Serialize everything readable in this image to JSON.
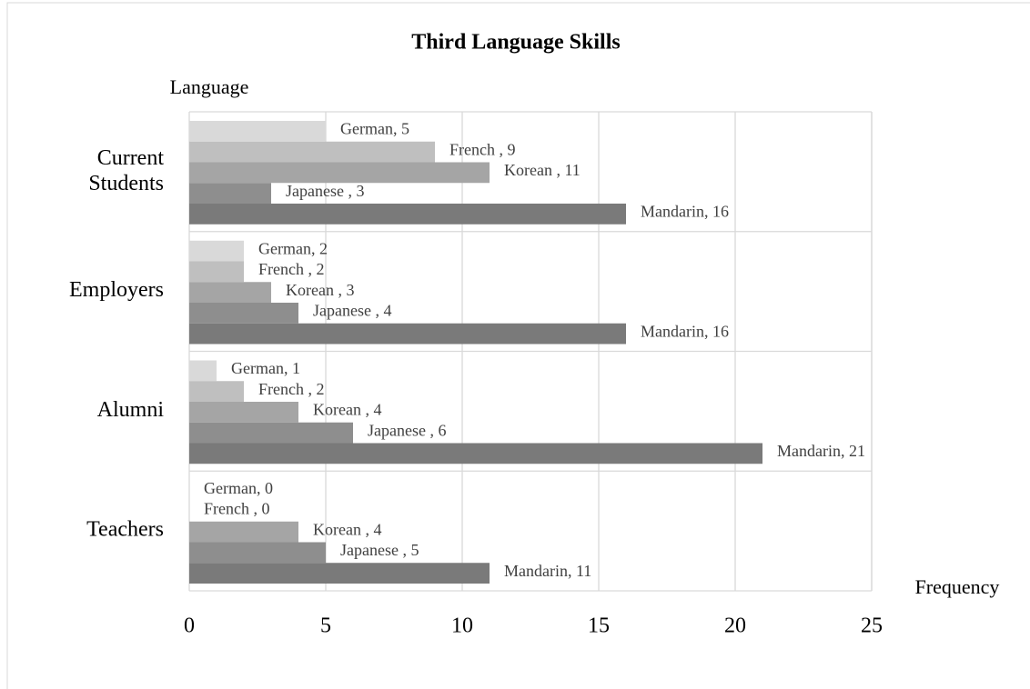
{
  "chart_data": {
    "type": "hbar",
    "title": "Third Language Skills",
    "ylabel": "Language",
    "xlabel": "Frequency",
    "categories": [
      "Current Students",
      "Employers",
      "Alumni",
      "Teachers"
    ],
    "series": [
      {
        "name": "German",
        "color": "#d9d9d9",
        "values": [
          5,
          2,
          1,
          0
        ],
        "value_labels": [
          "German, 5",
          "German, 2",
          "German, 1",
          "German, 0"
        ]
      },
      {
        "name": "French",
        "color": "#bfbfbf",
        "values": [
          9,
          2,
          2,
          0
        ],
        "value_labels": [
          "French , 9",
          "French , 2",
          "French , 2",
          "French , 0"
        ]
      },
      {
        "name": "Korean",
        "color": "#a5a5a5",
        "values": [
          11,
          3,
          4,
          4
        ],
        "value_labels": [
          "Korean , 11",
          "Korean , 3",
          "Korean , 4",
          "Korean , 4"
        ]
      },
      {
        "name": "Japanese",
        "color": "#8e8e8e",
        "values": [
          3,
          4,
          6,
          5
        ],
        "value_labels": [
          "Japanese , 3",
          "Japanese , 4",
          "Japanese , 6",
          "Japanese , 5"
        ]
      },
      {
        "name": "Mandarin",
        "color": "#7a7a7a",
        "values": [
          16,
          16,
          21,
          11
        ],
        "value_labels": [
          "Mandarin, 16",
          "Mandarin, 16",
          "Mandarin, 21",
          "Mandarin, 11"
        ]
      }
    ],
    "xlim": [
      0,
      25
    ],
    "xticks": [
      0,
      5,
      10,
      15,
      20,
      25
    ],
    "grid": true
  }
}
